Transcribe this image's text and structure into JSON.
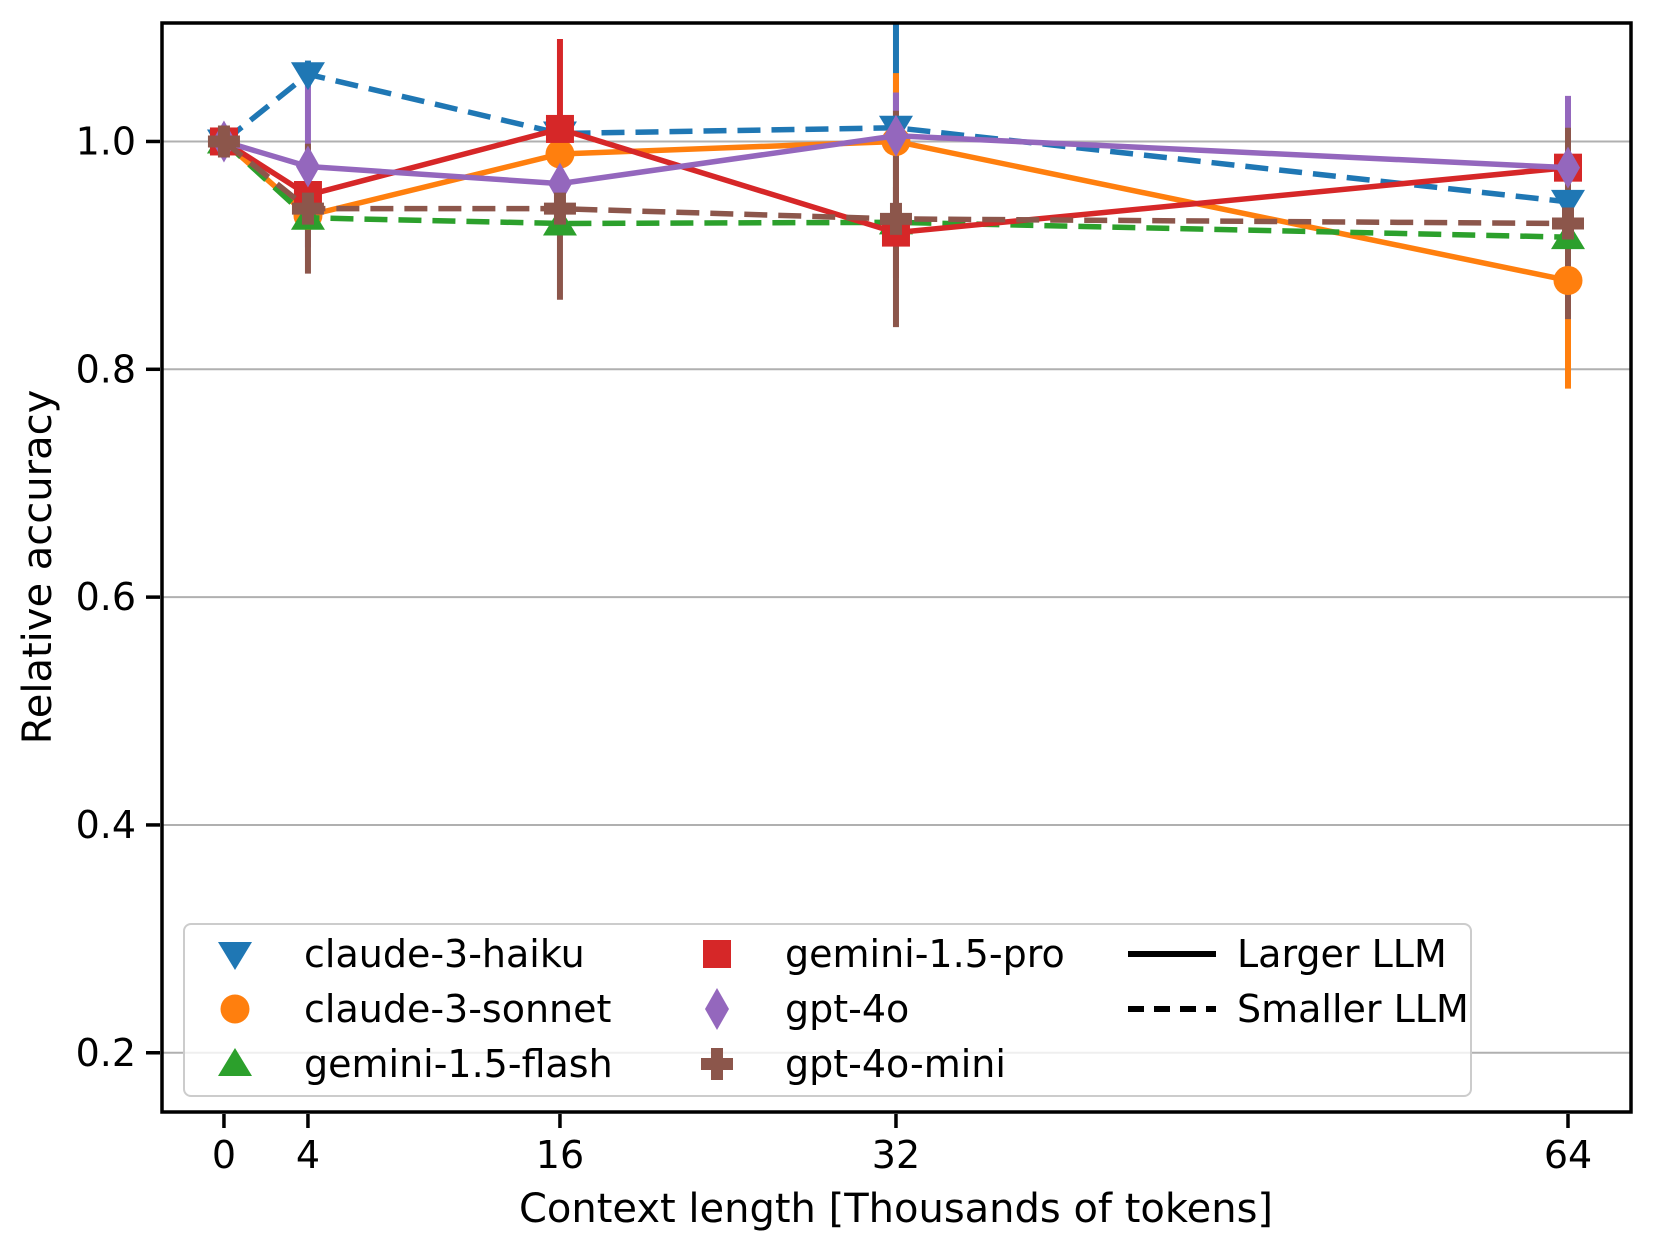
{
  "chart_data": {
    "type": "line",
    "title": "",
    "xlabel": "Context length [Thousands of tokens]",
    "ylabel": "Relative accuracy",
    "x": [
      0,
      4,
      16,
      32,
      64
    ],
    "xticks": [
      0,
      4,
      16,
      32,
      64
    ],
    "yticks": [
      0.2,
      0.4,
      0.6,
      0.8,
      1.0
    ],
    "xlim": [
      -2.95,
      67.0
    ],
    "ylim": [
      0.148,
      1.104
    ],
    "grid": "horizontal",
    "grid_color": "#b0b0b0",
    "spine_color": "#000000",
    "series": [
      {
        "name": "claude-3-haiku",
        "color": "#1f77b4",
        "style": "dashed",
        "llm_class": "Smaller LLM",
        "marker": "triangle-down",
        "values": [
          1.0,
          1.059,
          1.007,
          1.012,
          0.947
        ],
        "errors": [
          0,
          0.012,
          0.012,
          0.095,
          0.012
        ]
      },
      {
        "name": "claude-3-sonnet",
        "color": "#ff7f0e",
        "style": "solid",
        "llm_class": "Larger LLM",
        "marker": "circle",
        "values": [
          1.0,
          0.935,
          0.989,
          1.0,
          0.878
        ],
        "errors": [
          0,
          0.01,
          0.012,
          0.06,
          0.095
        ]
      },
      {
        "name": "gemini-1.5-flash",
        "color": "#2ca02c",
        "style": "dashed",
        "llm_class": "Smaller LLM",
        "marker": "triangle-up",
        "values": [
          1.0,
          0.933,
          0.928,
          0.929,
          0.916
        ],
        "errors": [
          0,
          0.01,
          0.01,
          0.012,
          0.01
        ]
      },
      {
        "name": "gemini-1.5-pro",
        "color": "#d62728",
        "style": "solid",
        "llm_class": "Larger LLM",
        "marker": "square",
        "values": [
          1.0,
          0.953,
          1.011,
          0.92,
          0.977
        ],
        "errors": [
          0,
          0.015,
          0.079,
          0.04,
          0.045
        ]
      },
      {
        "name": "gpt-4o",
        "color": "#9467bd",
        "style": "solid",
        "llm_class": "Larger LLM",
        "marker": "diamond",
        "values": [
          1.0,
          0.978,
          0.963,
          1.005,
          0.977
        ],
        "errors": [
          0,
          0.071,
          0.02,
          0.038,
          0.063
        ]
      },
      {
        "name": "gpt-4o-mini",
        "color": "#8c564b",
        "style": "dashed",
        "llm_class": "Smaller LLM",
        "marker": "plus",
        "values": [
          1.0,
          0.941,
          0.941,
          0.932,
          0.928
        ],
        "errors": [
          0,
          0.057,
          0.08,
          0.095,
          0.084
        ]
      }
    ],
    "legend": {
      "position": "lower-left",
      "line_styles": [
        {
          "label": "Larger LLM",
          "style": "solid"
        },
        {
          "label": "Smaller LLM",
          "style": "dashed"
        }
      ]
    }
  }
}
